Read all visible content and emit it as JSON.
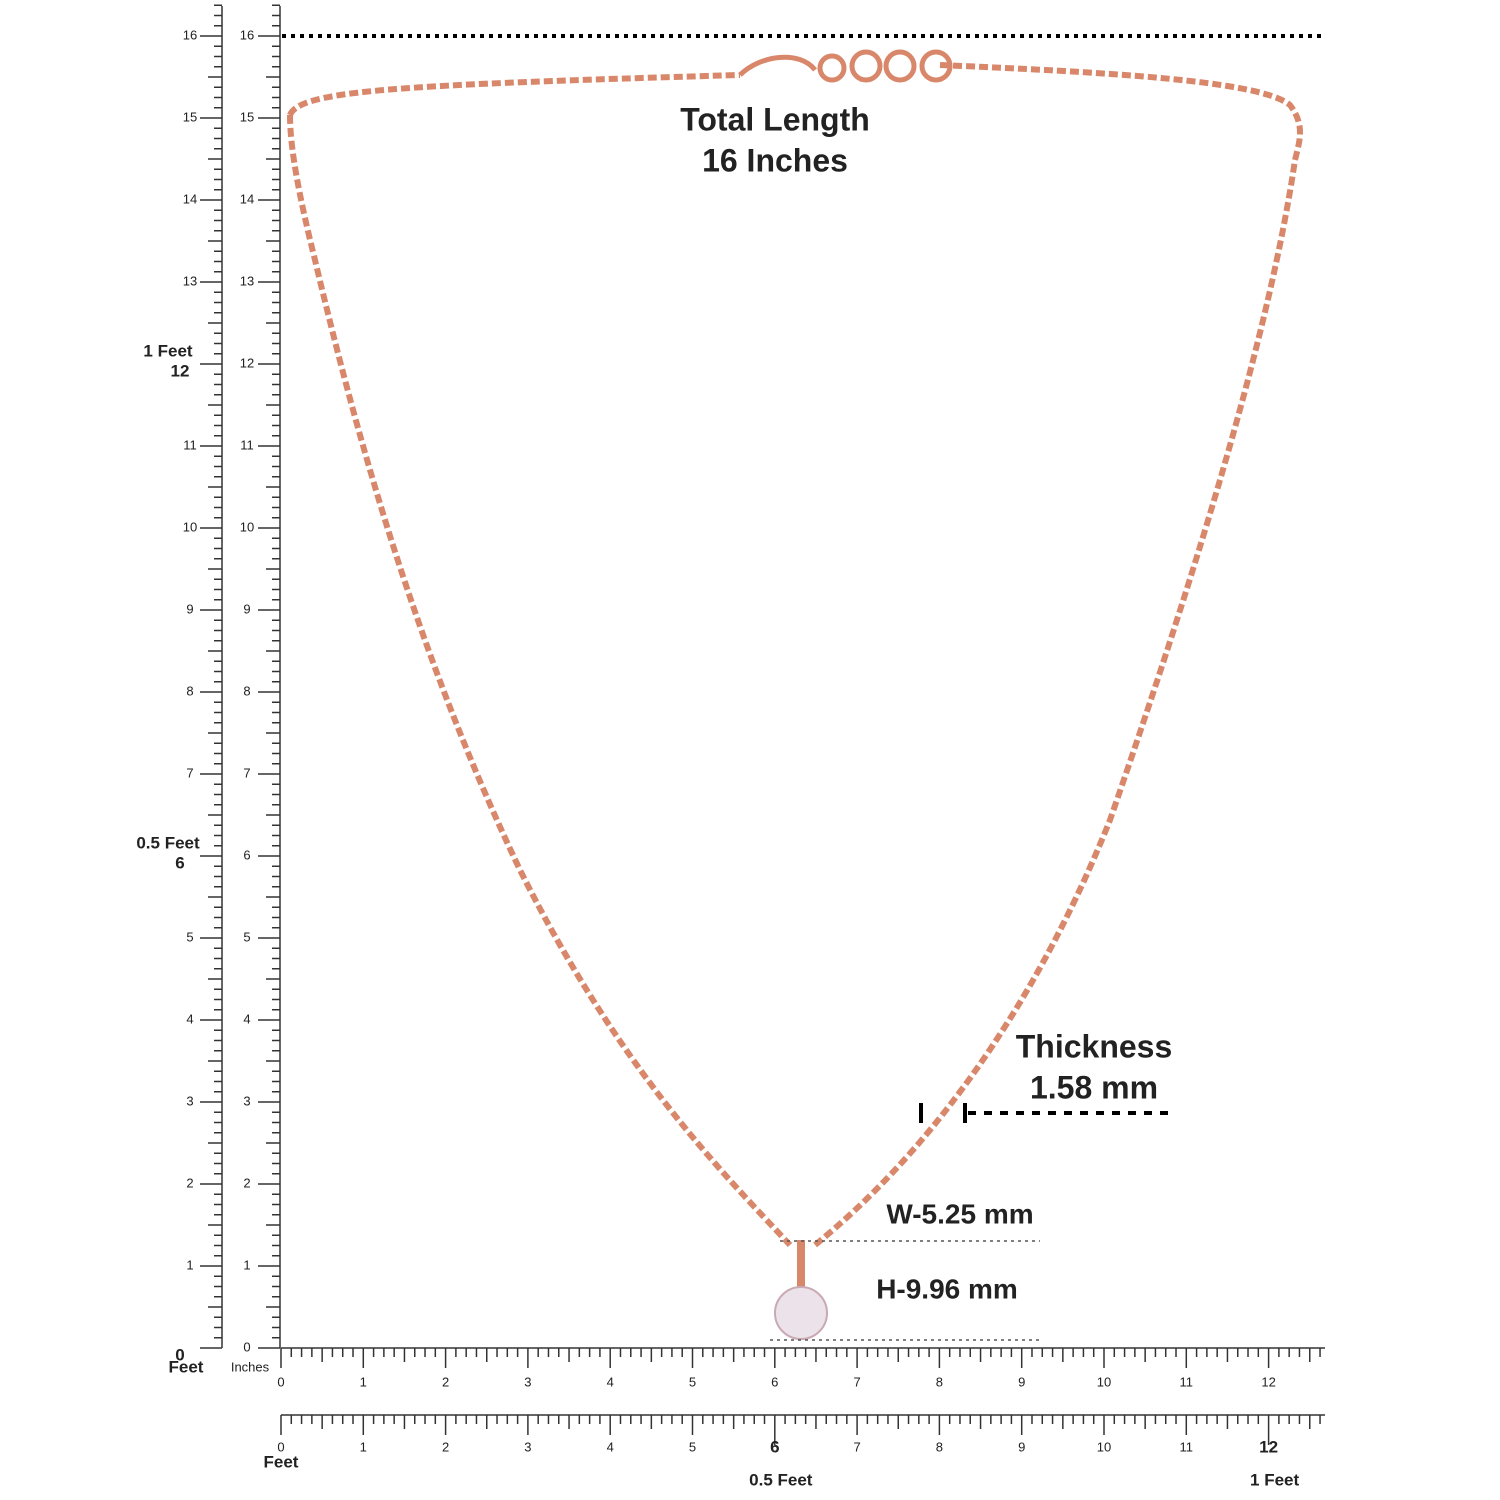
{
  "rulers": {
    "vertical_feet": {
      "unit": "Feet",
      "ticks": [
        0,
        1,
        2,
        3,
        4,
        5,
        6,
        7,
        8,
        9,
        10,
        11,
        12,
        13,
        14,
        15,
        16
      ],
      "markers": [
        {
          "value": 6,
          "label": "0.5 Feet"
        },
        {
          "value": 12,
          "label": "1 Feet"
        }
      ]
    },
    "vertical_inches": {
      "unit": "Inches",
      "ticks": [
        0,
        1,
        2,
        3,
        4,
        5,
        6,
        7,
        8,
        9,
        10,
        11,
        12,
        13,
        14,
        15,
        16
      ]
    },
    "horizontal_inches": {
      "ticks": [
        0,
        1,
        2,
        3,
        4,
        5,
        6,
        7,
        8,
        9,
        10,
        11,
        12
      ]
    },
    "horizontal_feet": {
      "unit": "Feet",
      "ticks": [
        0,
        1,
        2,
        3,
        4,
        5,
        6,
        7,
        8,
        9,
        10,
        11,
        12
      ],
      "markers": [
        {
          "value": 6,
          "label": "0.5 Feet"
        },
        {
          "value": 12,
          "label": "1 Feet"
        }
      ]
    }
  },
  "annotations": {
    "total_length": {
      "title": "Total Length",
      "value": "16 Inches"
    },
    "thickness": {
      "title": "Thickness",
      "value": "1.58 mm"
    },
    "width": "W-5.25 mm",
    "height": "H-9.96 mm"
  }
}
